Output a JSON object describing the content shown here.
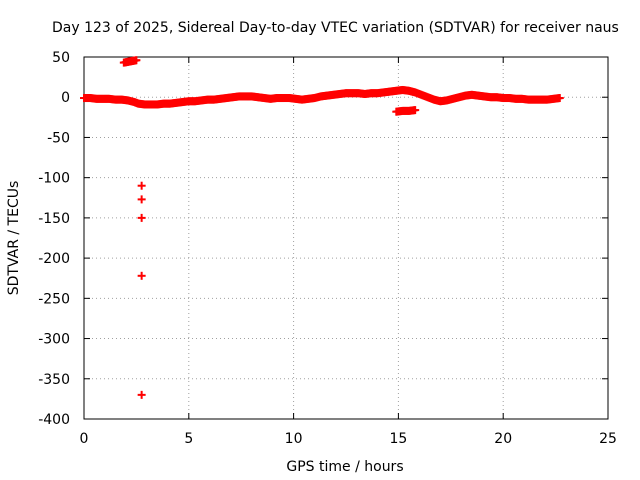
{
  "chart_data": {
    "type": "scatter",
    "title": "Day 123 of 2025, Sidereal Day-to-day VTEC variation (SDTVAR) for receiver naus",
    "xlabel": "GPS time / hours",
    "ylabel": "SDTVAR / TECUs",
    "xlim": [
      0,
      25
    ],
    "ylim": [
      -400,
      50
    ],
    "xticks": [
      "0",
      "5",
      "10",
      "15",
      "20",
      "25"
    ],
    "yticks": [
      "50",
      "0",
      "-50",
      "-100",
      "-150",
      "-200",
      "-250",
      "-300",
      "-350",
      "-400"
    ],
    "grid": true,
    "marker_color": "#ff0000",
    "series": [
      {
        "marker": "plus",
        "points": [
          [
            0.0,
            -1
          ],
          [
            0.3,
            -1
          ],
          [
            0.6,
            -2
          ],
          [
            0.9,
            -2
          ],
          [
            1.2,
            -2
          ],
          [
            1.5,
            -3
          ],
          [
            1.8,
            -3
          ],
          [
            2.1,
            -4
          ],
          [
            2.4,
            -6
          ],
          [
            2.6,
            -8
          ],
          [
            2.9,
            -9
          ],
          [
            3.2,
            -9
          ],
          [
            3.5,
            -9
          ],
          [
            3.8,
            -8
          ],
          [
            4.1,
            -8
          ],
          [
            4.4,
            -7
          ],
          [
            4.7,
            -6
          ],
          [
            5.0,
            -5
          ],
          [
            5.3,
            -5
          ],
          [
            5.6,
            -4
          ],
          [
            5.9,
            -3
          ],
          [
            6.2,
            -3
          ],
          [
            6.5,
            -2
          ],
          [
            6.8,
            -1
          ],
          [
            7.1,
            0
          ],
          [
            7.4,
            1
          ],
          [
            7.7,
            1
          ],
          [
            8.0,
            1
          ],
          [
            8.3,
            0
          ],
          [
            8.6,
            -1
          ],
          [
            8.9,
            -2
          ],
          [
            9.2,
            -1
          ],
          [
            9.5,
            -1
          ],
          [
            9.8,
            -1
          ],
          [
            10.1,
            -2
          ],
          [
            10.4,
            -3
          ],
          [
            10.7,
            -2
          ],
          [
            11.0,
            -1
          ],
          [
            11.3,
            1
          ],
          [
            11.6,
            2
          ],
          [
            11.9,
            3
          ],
          [
            12.2,
            4
          ],
          [
            12.5,
            5
          ],
          [
            12.8,
            5
          ],
          [
            13.1,
            5
          ],
          [
            13.4,
            4
          ],
          [
            13.7,
            5
          ],
          [
            14.0,
            5
          ],
          [
            14.3,
            6
          ],
          [
            14.6,
            7
          ],
          [
            14.9,
            8
          ],
          [
            15.2,
            9
          ],
          [
            15.5,
            8
          ],
          [
            15.8,
            6
          ],
          [
            16.1,
            3
          ],
          [
            16.4,
            0
          ],
          [
            16.7,
            -3
          ],
          [
            17.0,
            -5
          ],
          [
            17.3,
            -4
          ],
          [
            17.6,
            -2
          ],
          [
            17.9,
            0
          ],
          [
            18.2,
            2
          ],
          [
            18.5,
            3
          ],
          [
            18.8,
            2
          ],
          [
            19.1,
            1
          ],
          [
            19.4,
            0
          ],
          [
            19.7,
            0
          ],
          [
            20.0,
            -1
          ],
          [
            20.3,
            -1
          ],
          [
            20.6,
            -2
          ],
          [
            20.9,
            -2
          ],
          [
            21.2,
            -3
          ],
          [
            21.5,
            -3
          ],
          [
            21.8,
            -3
          ],
          [
            22.1,
            -3
          ],
          [
            22.4,
            -2
          ],
          [
            22.7,
            -1
          ],
          [
            1.9,
            43
          ],
          [
            2.1,
            44
          ],
          [
            2.3,
            45
          ],
          [
            2.5,
            46
          ],
          [
            14.9,
            -18
          ],
          [
            15.2,
            -17
          ],
          [
            15.5,
            -17
          ],
          [
            15.8,
            -16
          ],
          [
            2.75,
            -110
          ],
          [
            2.75,
            -127
          ],
          [
            2.75,
            -150
          ],
          [
            2.75,
            -222
          ],
          [
            2.75,
            -370
          ]
        ]
      }
    ]
  }
}
